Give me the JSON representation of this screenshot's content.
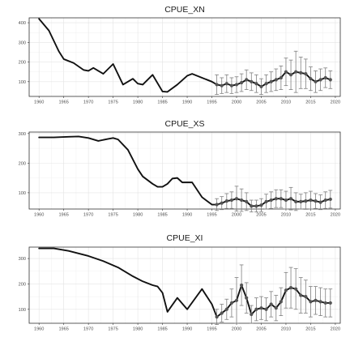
{
  "chart_data": [
    {
      "type": "line",
      "title": "CPUE_XN",
      "xlim": [
        1958,
        2021
      ],
      "ylim": [
        25,
        425
      ],
      "xticks": [
        1960,
        1965,
        1970,
        1975,
        1980,
        1985,
        1990,
        1995,
        2000,
        2005,
        2010,
        2015,
        2020
      ],
      "yticks": [
        100,
        200,
        300,
        400
      ],
      "grid": true,
      "series": [
        {
          "kind": "line",
          "x": [
            1960,
            1962,
            1964,
            1965,
            1967,
            1969,
            1970,
            1971,
            1973,
            1975,
            1977,
            1979,
            1980,
            1981,
            1983,
            1985,
            1986,
            1988,
            1990,
            1991,
            1993,
            1995,
            1996,
            1997,
            1998,
            1999,
            2000,
            2001,
            2002,
            2003,
            2004,
            2005,
            2006,
            2007,
            2008,
            2009,
            2010,
            2011,
            2012,
            2013,
            2014,
            2015,
            2016,
            2017,
            2018,
            2019
          ],
          "y": [
            420,
            360,
            255,
            215,
            195,
            160,
            155,
            170,
            140,
            190,
            85,
            115,
            90,
            85,
            135,
            50,
            48,
            85,
            130,
            140,
            120,
            100,
            85,
            80,
            90,
            80,
            85,
            95,
            110,
            100,
            90,
            75,
            90,
            100,
            110,
            120,
            150,
            135,
            150,
            145,
            140,
            115,
            100,
            110,
            120,
            110
          ]
        },
        {
          "kind": "points",
          "x": [
            1996,
            1997,
            1998,
            1999,
            2000,
            2001,
            2002,
            2003,
            2004,
            2005,
            2006,
            2007,
            2008,
            2009,
            2010,
            2011,
            2012,
            2013,
            2014,
            2015,
            2016,
            2017,
            2018,
            2019
          ],
          "y": [
            85,
            80,
            90,
            80,
            85,
            95,
            110,
            100,
            90,
            75,
            90,
            100,
            110,
            120,
            150,
            135,
            150,
            145,
            140,
            115,
            100,
            110,
            120,
            110
          ],
          "err": [
            50,
            40,
            45,
            40,
            40,
            45,
            50,
            45,
            45,
            40,
            45,
            50,
            55,
            60,
            70,
            75,
            105,
            80,
            75,
            60,
            55,
            55,
            50,
            45
          ]
        }
      ]
    },
    {
      "type": "line",
      "title": "CPUE_XS",
      "xlim": [
        1958,
        2021
      ],
      "ylim": [
        45,
        305
      ],
      "xticks": [
        1960,
        1965,
        1970,
        1975,
        1980,
        1985,
        1990,
        1995,
        2000,
        2005,
        2010,
        2015,
        2020
      ],
      "yticks": [
        100,
        200,
        300
      ],
      "grid": true,
      "series": [
        {
          "kind": "line",
          "x": [
            1960,
            1963,
            1966,
            1968,
            1970,
            1972,
            1974,
            1975,
            1976,
            1978,
            1980,
            1981,
            1983,
            1984,
            1985,
            1986,
            1987,
            1988,
            1989,
            1991,
            1993,
            1995,
            1996,
            1997,
            1998,
            1999,
            2000,
            2001,
            2002,
            2003,
            2004,
            2005,
            2006,
            2007,
            2008,
            2009,
            2010,
            2011,
            2012,
            2013,
            2014,
            2015,
            2016,
            2017,
            2018,
            2019
          ],
          "y": [
            287,
            287,
            289,
            290,
            285,
            275,
            282,
            285,
            280,
            245,
            180,
            155,
            130,
            120,
            120,
            130,
            148,
            150,
            135,
            135,
            85,
            60,
            60,
            65,
            72,
            75,
            80,
            75,
            70,
            55,
            55,
            58,
            70,
            75,
            80,
            80,
            75,
            80,
            70,
            70,
            72,
            75,
            72,
            68,
            75,
            78
          ]
        },
        {
          "kind": "points",
          "x": [
            1996,
            1997,
            1998,
            1999,
            2000,
            2001,
            2002,
            2003,
            2004,
            2005,
            2006,
            2007,
            2008,
            2009,
            2010,
            2011,
            2012,
            2013,
            2014,
            2015,
            2016,
            2017,
            2018,
            2019
          ],
          "y": [
            60,
            65,
            72,
            75,
            80,
            75,
            70,
            55,
            55,
            58,
            70,
            75,
            80,
            80,
            75,
            80,
            70,
            70,
            72,
            75,
            72,
            68,
            75,
            78
          ],
          "err": [
            20,
            22,
            25,
            28,
            42,
            38,
            30,
            20,
            20,
            22,
            25,
            28,
            30,
            30,
            30,
            38,
            30,
            25,
            28,
            30,
            25,
            25,
            28,
            30
          ]
        }
      ]
    },
    {
      "type": "line",
      "title": "CPUE_XI",
      "xlim": [
        1958,
        2021
      ],
      "ylim": [
        45,
        345
      ],
      "xticks": [
        1960,
        1965,
        1970,
        1975,
        1980,
        1985,
        1990,
        1995,
        2000,
        2005,
        2010,
        2015,
        2020
      ],
      "yticks": [
        100,
        200,
        300
      ],
      "grid": true,
      "series": [
        {
          "kind": "line",
          "x": [
            1960,
            1963,
            1966,
            1970,
            1973,
            1976,
            1979,
            1981,
            1983,
            1984,
            1985,
            1986,
            1988,
            1990,
            1993,
            1995,
            1996,
            1997,
            1998,
            1999,
            2000,
            2001,
            2002,
            2003,
            2004,
            2005,
            2006,
            2007,
            2008,
            2009,
            2010,
            2011,
            2012,
            2013,
            2014,
            2015,
            2016,
            2017,
            2018,
            2019
          ],
          "y": [
            340,
            340,
            330,
            310,
            290,
            265,
            230,
            210,
            195,
            190,
            165,
            90,
            145,
            100,
            180,
            120,
            70,
            85,
            100,
            125,
            135,
            195,
            145,
            80,
            100,
            105,
            100,
            120,
            105,
            130,
            175,
            185,
            180,
            155,
            150,
            130,
            135,
            130,
            125,
            125
          ]
        },
        {
          "kind": "points",
          "x": [
            1996,
            1997,
            1998,
            1999,
            2000,
            2001,
            2002,
            2003,
            2004,
            2005,
            2006,
            2007,
            2008,
            2009,
            2010,
            2011,
            2012,
            2013,
            2014,
            2015,
            2016,
            2017,
            2018,
            2019
          ],
          "y": [
            70,
            85,
            100,
            125,
            135,
            195,
            145,
            80,
            100,
            105,
            100,
            120,
            105,
            130,
            175,
            185,
            180,
            155,
            150,
            130,
            135,
            130,
            125,
            125
          ],
          "err": [
            30,
            35,
            40,
            55,
            90,
            80,
            60,
            35,
            45,
            45,
            45,
            50,
            50,
            55,
            70,
            80,
            80,
            70,
            65,
            60,
            55,
            55,
            55,
            55
          ]
        }
      ]
    }
  ]
}
